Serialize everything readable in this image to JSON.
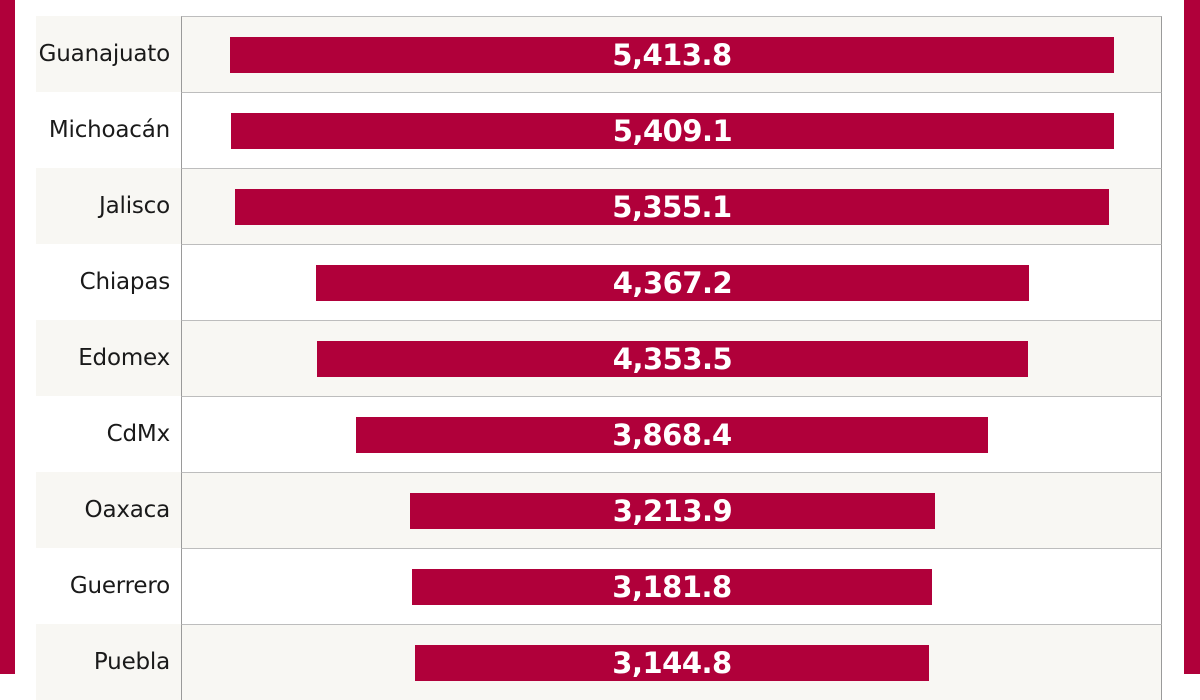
{
  "colors": {
    "bar": "#b0003a",
    "frame": "#b0003a",
    "row_alt": "#f8f7f3",
    "row": "#ffffff"
  },
  "chart_data": {
    "type": "bar",
    "orientation": "horizontal",
    "title": "",
    "xlabel": "",
    "ylabel": "",
    "categories": [
      "Guanajuato",
      "Michoacán",
      "Jalisco",
      "Chiapas",
      "Edomex",
      "CdMx",
      "Oaxaca",
      "Guerrero",
      "Puebla"
    ],
    "values": [
      5413.8,
      5409.1,
      5355.1,
      4367.2,
      4353.5,
      3868.4,
      3213.9,
      3181.8,
      3144.8
    ],
    "value_labels": [
      "5,413.8",
      "5,409.1",
      "5,355.1",
      "4,367.2",
      "4,353.5",
      "3,868.4",
      "3,213.9",
      "3,181.8",
      "3,144.8"
    ],
    "bar_alignment": "centered",
    "data_labels": "inside bar, centered, white bold",
    "grid": false,
    "legend": null
  }
}
